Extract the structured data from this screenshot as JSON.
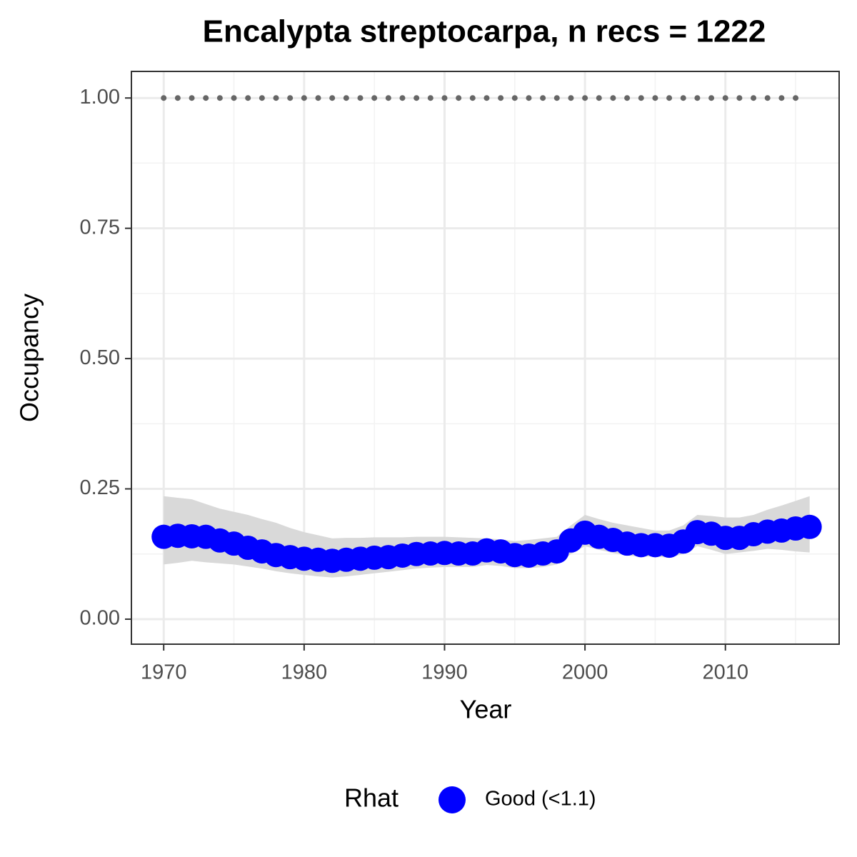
{
  "chart_data": {
    "type": "line",
    "title": "Encalypta streptocarpa, n recs = 1222",
    "x_label": "Year",
    "y_label": "Occupancy",
    "x": [
      1970,
      1971,
      1972,
      1973,
      1974,
      1975,
      1976,
      1977,
      1978,
      1979,
      1980,
      1981,
      1982,
      1983,
      1984,
      1985,
      1986,
      1987,
      1988,
      1989,
      1990,
      1991,
      1992,
      1993,
      1994,
      1995,
      1996,
      1997,
      1998,
      1999,
      2000,
      2001,
      2002,
      2003,
      2004,
      2005,
      2006,
      2007,
      2008,
      2009,
      2010,
      2011,
      2012,
      2013,
      2014,
      2015,
      2016
    ],
    "series": [
      {
        "name": "Good (<1.1)",
        "color": "#0000ff",
        "values": [
          0.158,
          0.16,
          0.159,
          0.158,
          0.151,
          0.145,
          0.137,
          0.13,
          0.123,
          0.119,
          0.116,
          0.114,
          0.112,
          0.114,
          0.116,
          0.118,
          0.119,
          0.122,
          0.125,
          0.126,
          0.127,
          0.126,
          0.126,
          0.132,
          0.13,
          0.123,
          0.122,
          0.126,
          0.13,
          0.151,
          0.166,
          0.158,
          0.152,
          0.145,
          0.142,
          0.142,
          0.141,
          0.149,
          0.167,
          0.164,
          0.156,
          0.156,
          0.163,
          0.168,
          0.17,
          0.174,
          0.177
        ]
      }
    ],
    "upper": [
      0.236,
      0.233,
      0.23,
      0.221,
      0.212,
      0.206,
      0.2,
      0.192,
      0.185,
      0.175,
      0.167,
      0.161,
      0.155,
      0.156,
      0.156,
      0.157,
      0.157,
      0.157,
      0.158,
      0.158,
      0.158,
      0.157,
      0.156,
      0.155,
      0.153,
      0.15,
      0.152,
      0.155,
      0.158,
      0.18,
      0.2,
      0.192,
      0.185,
      0.18,
      0.175,
      0.17,
      0.17,
      0.18,
      0.2,
      0.198,
      0.195,
      0.195,
      0.2,
      0.21,
      0.218,
      0.227,
      0.236
    ],
    "lower": [
      0.105,
      0.108,
      0.112,
      0.109,
      0.107,
      0.105,
      0.101,
      0.097,
      0.092,
      0.088,
      0.085,
      0.082,
      0.08,
      0.082,
      0.085,
      0.088,
      0.091,
      0.094,
      0.097,
      0.099,
      0.1,
      0.1,
      0.1,
      0.104,
      0.102,
      0.098,
      0.098,
      0.1,
      0.105,
      0.125,
      0.14,
      0.133,
      0.127,
      0.122,
      0.12,
      0.12,
      0.118,
      0.125,
      0.14,
      0.133,
      0.125,
      0.128,
      0.131,
      0.135,
      0.133,
      0.13,
      0.128
    ],
    "ribbon_color": "#d9d9d9",
    "reference": [
      1,
      1,
      1,
      1,
      1,
      1,
      1,
      1,
      1,
      1,
      1,
      1,
      1,
      1,
      1,
      1,
      1,
      1,
      1,
      1,
      1,
      1,
      1,
      1,
      1,
      1,
      1,
      1,
      1,
      1,
      1,
      1,
      1,
      1,
      1,
      1,
      1,
      1,
      1,
      1,
      1,
      1,
      1,
      1,
      1,
      1,
      null
    ],
    "reference_color": "#666666",
    "xlim": [
      1967.7,
      2018.1
    ],
    "ylim": [
      -0.048,
      1.051
    ],
    "xticks": [
      1970,
      1980,
      1990,
      2000,
      2010
    ],
    "yticks": [
      {
        "value": 0,
        "label": "0.00"
      },
      {
        "value": 0.25,
        "label": "0.25"
      },
      {
        "value": 0.5,
        "label": "0.50"
      },
      {
        "value": 0.75,
        "label": "0.75"
      },
      {
        "value": 1,
        "label": "1.00"
      }
    ],
    "xminor": [
      1975,
      1985,
      1995,
      2005,
      2015
    ],
    "yminor": [
      0.125,
      0.375,
      0.625,
      0.875
    ],
    "grid": true,
    "legend_title": "Rhat",
    "legend_position": "bottom"
  }
}
